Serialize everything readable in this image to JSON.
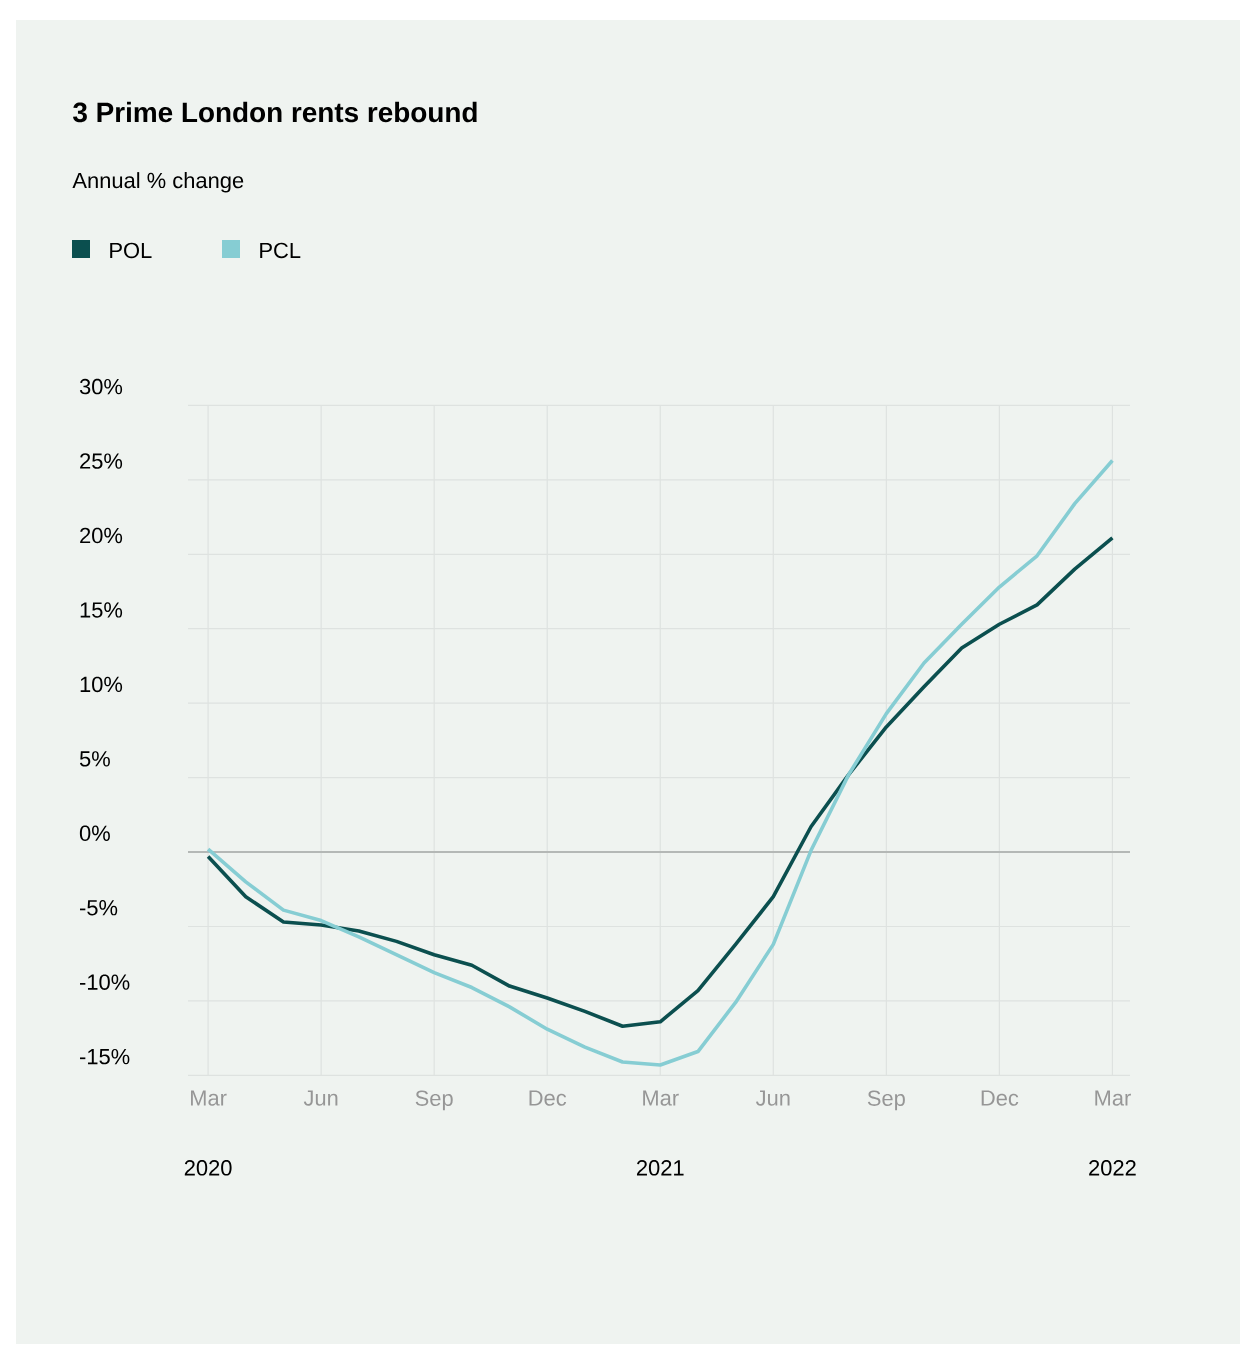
{
  "chart_data": {
    "type": "line",
    "title": "3 Prime London rents rebound",
    "subtitle": "Annual % change",
    "x": [
      "2020-03",
      "2020-04",
      "2020-05",
      "2020-06",
      "2020-07",
      "2020-08",
      "2020-09",
      "2020-10",
      "2020-11",
      "2020-12",
      "2021-01",
      "2021-02",
      "2021-03",
      "2021-04",
      "2021-05",
      "2021-06",
      "2021-07",
      "2021-08",
      "2021-09",
      "2021-10",
      "2021-11",
      "2021-12",
      "2022-01",
      "2022-02",
      "2022-03"
    ],
    "series": [
      {
        "name": "POL",
        "color": "#0b4f4f",
        "values": [
          -0.3,
          -3.0,
          -4.7,
          -4.9,
          -5.3,
          -6.0,
          -6.9,
          -7.6,
          -9.0,
          -9.8,
          -10.7,
          -11.7,
          -11.4,
          -9.3,
          -6.2,
          -3.0,
          1.7,
          5.2,
          8.4,
          11.1,
          13.7,
          15.3,
          16.6,
          19.0,
          21.1
        ]
      },
      {
        "name": "PCL",
        "color": "#86cdd3",
        "values": [
          0.2,
          -2.0,
          -3.9,
          -4.6,
          -5.7,
          -6.9,
          -8.1,
          -9.1,
          -10.4,
          -11.9,
          -13.1,
          -14.1,
          -14.3,
          -13.4,
          -10.1,
          -6.2,
          0.1,
          5.2,
          9.3,
          12.7,
          15.3,
          17.8,
          19.9,
          23.4,
          26.3
        ]
      }
    ],
    "xlim": [
      "2020-02-15",
      "2022-03-15"
    ],
    "xticks": [
      {
        "value": "2020-03",
        "label": "Mar"
      },
      {
        "value": "2020-06",
        "label": "Jun"
      },
      {
        "value": "2020-09",
        "label": "Sep"
      },
      {
        "value": "2020-12",
        "label": "Dec"
      },
      {
        "value": "2021-03",
        "label": "Mar"
      },
      {
        "value": "2021-06",
        "label": "Jun"
      },
      {
        "value": "2021-09",
        "label": "Sep"
      },
      {
        "value": "2021-12",
        "label": "Dec"
      },
      {
        "value": "2022-03",
        "label": "Mar"
      }
    ],
    "ylim": [
      -15,
      30
    ],
    "yticks": [
      {
        "value": -15,
        "label": "-15%"
      },
      {
        "value": -10,
        "label": "-10%"
      },
      {
        "value": -5,
        "label": "-5%"
      },
      {
        "value": 0,
        "label": "0%"
      },
      {
        "value": 5,
        "label": "5%"
      },
      {
        "value": 10,
        "label": "10%"
      },
      {
        "value": 15,
        "label": "15%"
      },
      {
        "value": 20,
        "label": "20%"
      },
      {
        "value": 25,
        "label": "25%"
      },
      {
        "value": 30,
        "label": "30%"
      }
    ],
    "ref_lines": [
      {
        "axis": "y",
        "value": 0,
        "color": "#b4b8b6"
      }
    ],
    "annotations": [
      "2020",
      "2021",
      "2022"
    ],
    "grid": true,
    "legend": "top left",
    "marker": "none",
    "line_style": "solid"
  }
}
